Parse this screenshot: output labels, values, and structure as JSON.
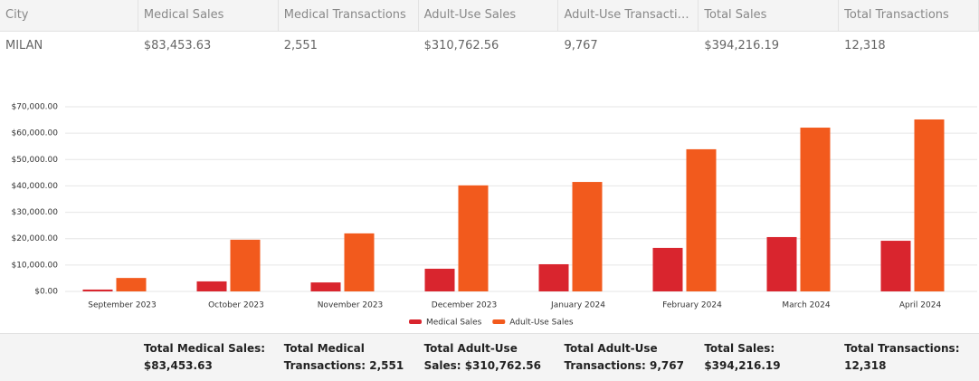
{
  "table": {
    "header": [
      "City",
      "Medical Sales",
      "Medical Transactions",
      "Adult-Use Sales",
      "Adult-Use Transactions",
      "Total Sales",
      "Total Transactions"
    ],
    "rows": [
      [
        "MILAN",
        "$83,453.63",
        "2,551",
        "$310,762.56",
        "9,767",
        "$394,216.19",
        "12,318"
      ]
    ]
  },
  "chart_data": {
    "type": "bar",
    "categories": [
      "September 2023",
      "October 2023",
      "November 2023",
      "December 2023",
      "January 2024",
      "February 2024",
      "March 2024",
      "April 2024"
    ],
    "series": [
      {
        "name": "Medical Sales",
        "color": "#d9252e",
        "values": [
          700,
          3800,
          3400,
          8600,
          10300,
          16500,
          20600,
          19200
        ]
      },
      {
        "name": "Adult-Use Sales",
        "color": "#f25a1d",
        "values": [
          5100,
          19600,
          22000,
          40200,
          41500,
          53900,
          62100,
          65200
        ]
      }
    ],
    "ylim": [
      0,
      70000
    ],
    "yticks": [
      {
        "value": 0,
        "label": "$0.00"
      },
      {
        "value": 10000,
        "label": "$10,000.00"
      },
      {
        "value": 20000,
        "label": "$20,000.00"
      },
      {
        "value": 30000,
        "label": "$30,000.00"
      },
      {
        "value": 40000,
        "label": "$40,000.00"
      },
      {
        "value": 50000,
        "label": "$50,000.00"
      },
      {
        "value": 60000,
        "label": "$60,000.00"
      },
      {
        "value": 70000,
        "label": "$70,000.00"
      }
    ],
    "grid": true,
    "legend": "bottom"
  },
  "footer": [
    "Total Medical Sales: $83,453.63",
    "Total Medical Transactions: 2,551",
    "Total Adult-Use Sales: $310,762.56",
    "Total Adult-Use Transactions: 9,767",
    "Total Sales: $394,216.19",
    "Total Transactions: 12,318"
  ]
}
